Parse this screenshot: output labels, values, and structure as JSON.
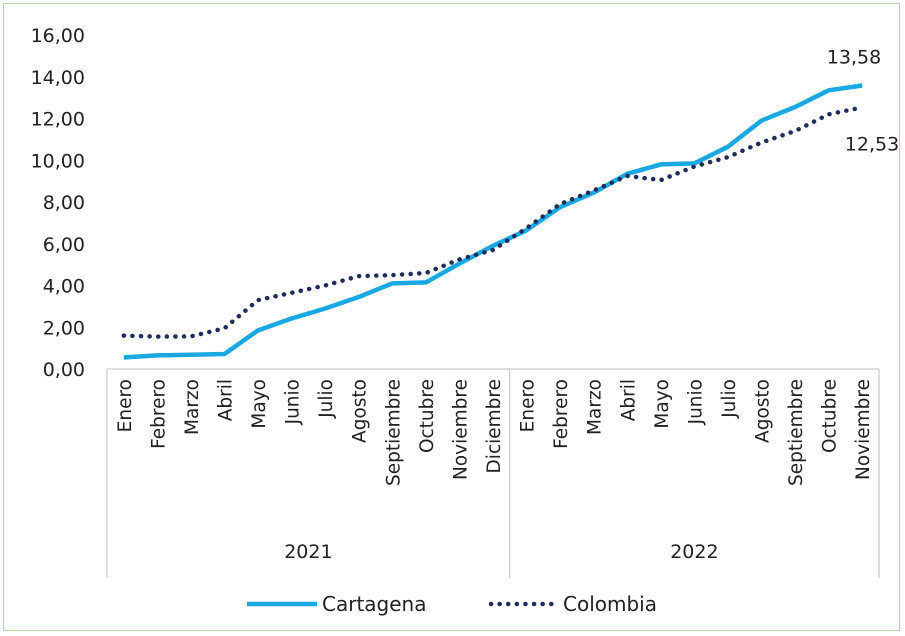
{
  "chart_data": {
    "type": "line",
    "title": "",
    "xlabel": "",
    "ylabel": "",
    "ylim": [
      0,
      16
    ],
    "yticks": [
      "0,00",
      "2,00",
      "4,00",
      "6,00",
      "8,00",
      "10,00",
      "12,00",
      "14,00",
      "16,00"
    ],
    "grid": false,
    "legend_position": "bottom",
    "year_groups": [
      {
        "label": "2021",
        "months": [
          "Enero",
          "Febrero",
          "Marzo",
          "Abril",
          "Mayo",
          "Junio",
          "Julio",
          "Agosto",
          "Septiembre",
          "Octubre",
          "Noviembre",
          "Diciembre"
        ]
      },
      {
        "label": "2022",
        "months": [
          "Enero",
          "Febrero",
          "Marzo",
          "Abril",
          "Mayo",
          "Junio",
          "Julio",
          "Agosto",
          "Septiembre",
          "Octubre",
          "Noviembre"
        ]
      }
    ],
    "series": [
      {
        "name": "Cartagena",
        "style": "solid",
        "color": "#1aa8e2",
        "values": [
          0.55,
          0.65,
          0.68,
          0.72,
          1.85,
          2.42,
          2.9,
          3.45,
          4.1,
          4.15,
          5.05,
          5.9,
          6.65,
          7.75,
          8.45,
          9.35,
          9.8,
          9.85,
          10.65,
          11.9,
          12.55,
          13.35,
          13.58
        ],
        "end_label": "13,58"
      },
      {
        "name": "Colombia",
        "style": "dotted",
        "color": "#1f2c5c",
        "values": [
          1.6,
          1.55,
          1.56,
          1.95,
          3.3,
          3.65,
          4.0,
          4.45,
          4.5,
          4.6,
          5.25,
          5.7,
          6.75,
          7.9,
          8.55,
          9.25,
          9.05,
          9.7,
          10.15,
          10.85,
          11.4,
          12.2,
          12.53
        ],
        "end_label": "12,53"
      }
    ]
  }
}
